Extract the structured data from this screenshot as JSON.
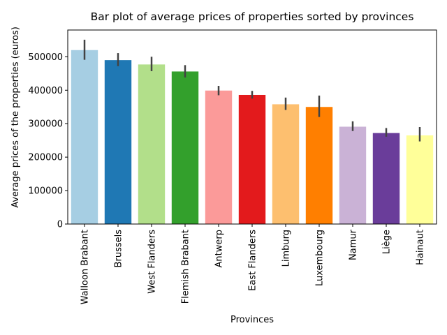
{
  "chart_data": {
    "type": "bar",
    "title": "Bar plot of average prices of properties sorted by provinces",
    "xlabel": "Provinces",
    "ylabel": "Average prices of the properties (euros)",
    "ylim": [
      0,
      580000
    ],
    "yticks": [
      0,
      100000,
      200000,
      300000,
      400000,
      500000
    ],
    "ytick_labels": [
      "0",
      "100000",
      "200000",
      "300000",
      "400000",
      "500000"
    ],
    "grid": false,
    "legend": "none",
    "categories": [
      "Walloon Brabant",
      "Brussels",
      "West Flanders",
      "Flemish Brabant",
      "Antwerp",
      "East Flanders",
      "Limburg",
      "Luxembourg",
      "Namur",
      "Liège",
      "Hainaut"
    ],
    "values": [
      520000,
      490000,
      477000,
      456000,
      399000,
      386000,
      358000,
      350000,
      291000,
      272000,
      265000
    ],
    "error_low": [
      491000,
      472000,
      457000,
      438000,
      385000,
      375000,
      341000,
      320000,
      278000,
      261000,
      247000
    ],
    "error_high": [
      551000,
      511000,
      500000,
      475000,
      413000,
      398000,
      378000,
      384000,
      307000,
      287000,
      290000
    ],
    "colors": [
      "#a6cee3",
      "#1f78b4",
      "#b2df8a",
      "#33a02c",
      "#fb9a99",
      "#e31a1c",
      "#fdbf6f",
      "#ff7f00",
      "#cab2d6",
      "#6a3d9a",
      "#ffff99"
    ]
  }
}
